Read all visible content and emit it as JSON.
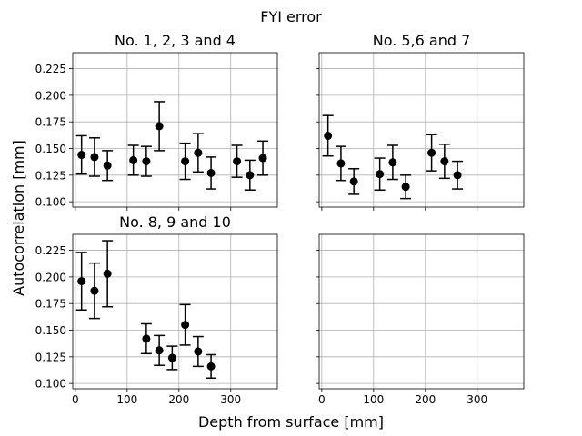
{
  "figure": {
    "suptitle": "FYI error",
    "supxlabel": "Depth from surface [mm]",
    "supylabel": "Autocorrelation [mm]"
  },
  "chart_data": [
    {
      "type": "scatter",
      "title": "No. 1, 2, 3 and 4",
      "grid": true,
      "xlim": [
        -5,
        390
      ],
      "ylim": [
        0.095,
        0.24
      ],
      "xticks": [
        0,
        100,
        200,
        300
      ],
      "yticks": [
        0.1,
        0.125,
        0.15,
        0.175,
        0.2,
        0.225
      ],
      "xtick_labels": [
        "",
        "",
        "",
        ""
      ],
      "ytick_labels": [
        "0.100",
        "0.125",
        "0.150",
        "0.175",
        "0.200",
        "0.225"
      ],
      "series": [
        {
          "x": [
            12,
            37,
            62,
            112,
            137,
            162,
            212,
            237,
            262,
            312,
            337,
            362
          ],
          "y": [
            0.144,
            0.142,
            0.134,
            0.139,
            0.138,
            0.171,
            0.138,
            0.146,
            0.127,
            0.138,
            0.125,
            0.141
          ],
          "err": [
            0.018,
            0.018,
            0.014,
            0.014,
            0.014,
            0.023,
            0.017,
            0.018,
            0.015,
            0.015,
            0.014,
            0.016
          ]
        }
      ]
    },
    {
      "type": "scatter",
      "title": "No. 5,6 and 7",
      "grid": true,
      "xlim": [
        -5,
        390
      ],
      "ylim": [
        0.095,
        0.24
      ],
      "xticks": [
        0,
        100,
        200,
        300
      ],
      "yticks": [
        0.1,
        0.125,
        0.15,
        0.175,
        0.2,
        0.225
      ],
      "xtick_labels": [
        "",
        "",
        "",
        ""
      ],
      "ytick_labels": [
        "",
        "",
        "",
        "",
        "",
        ""
      ],
      "series": [
        {
          "x": [
            12,
            37,
            62,
            112,
            137,
            162,
            212,
            237,
            262
          ],
          "y": [
            0.162,
            0.136,
            0.119,
            0.126,
            0.137,
            0.114,
            0.146,
            0.138,
            0.125
          ],
          "err": [
            0.019,
            0.016,
            0.012,
            0.015,
            0.016,
            0.011,
            0.017,
            0.016,
            0.013
          ]
        }
      ]
    },
    {
      "type": "scatter",
      "title": "No. 8, 9 and 10",
      "grid": true,
      "xlim": [
        -5,
        390
      ],
      "ylim": [
        0.095,
        0.24
      ],
      "xticks": [
        0,
        100,
        200,
        300
      ],
      "yticks": [
        0.1,
        0.125,
        0.15,
        0.175,
        0.2,
        0.225
      ],
      "xtick_labels": [
        "0",
        "100",
        "200",
        "300"
      ],
      "ytick_labels": [
        "0.100",
        "0.125",
        "0.150",
        "0.175",
        "0.200",
        "0.225"
      ],
      "series": [
        {
          "x": [
            12,
            37,
            62,
            137,
            162,
            187,
            212,
            237,
            262
          ],
          "y": [
            0.196,
            0.187,
            0.203,
            0.142,
            0.131,
            0.124,
            0.155,
            0.13,
            0.116
          ],
          "err": [
            0.027,
            0.026,
            0.031,
            0.014,
            0.014,
            0.011,
            0.019,
            0.014,
            0.011
          ]
        }
      ]
    },
    {
      "type": "scatter",
      "title": "",
      "grid": true,
      "xlim": [
        -5,
        390
      ],
      "ylim": [
        0.095,
        0.24
      ],
      "xticks": [
        0,
        100,
        200,
        300
      ],
      "yticks": [
        0.1,
        0.125,
        0.15,
        0.175,
        0.2,
        0.225
      ],
      "xtick_labels": [
        "0",
        "100",
        "200",
        "300"
      ],
      "ytick_labels": [
        "",
        "",
        "",
        "",
        "",
        ""
      ],
      "series": []
    }
  ]
}
